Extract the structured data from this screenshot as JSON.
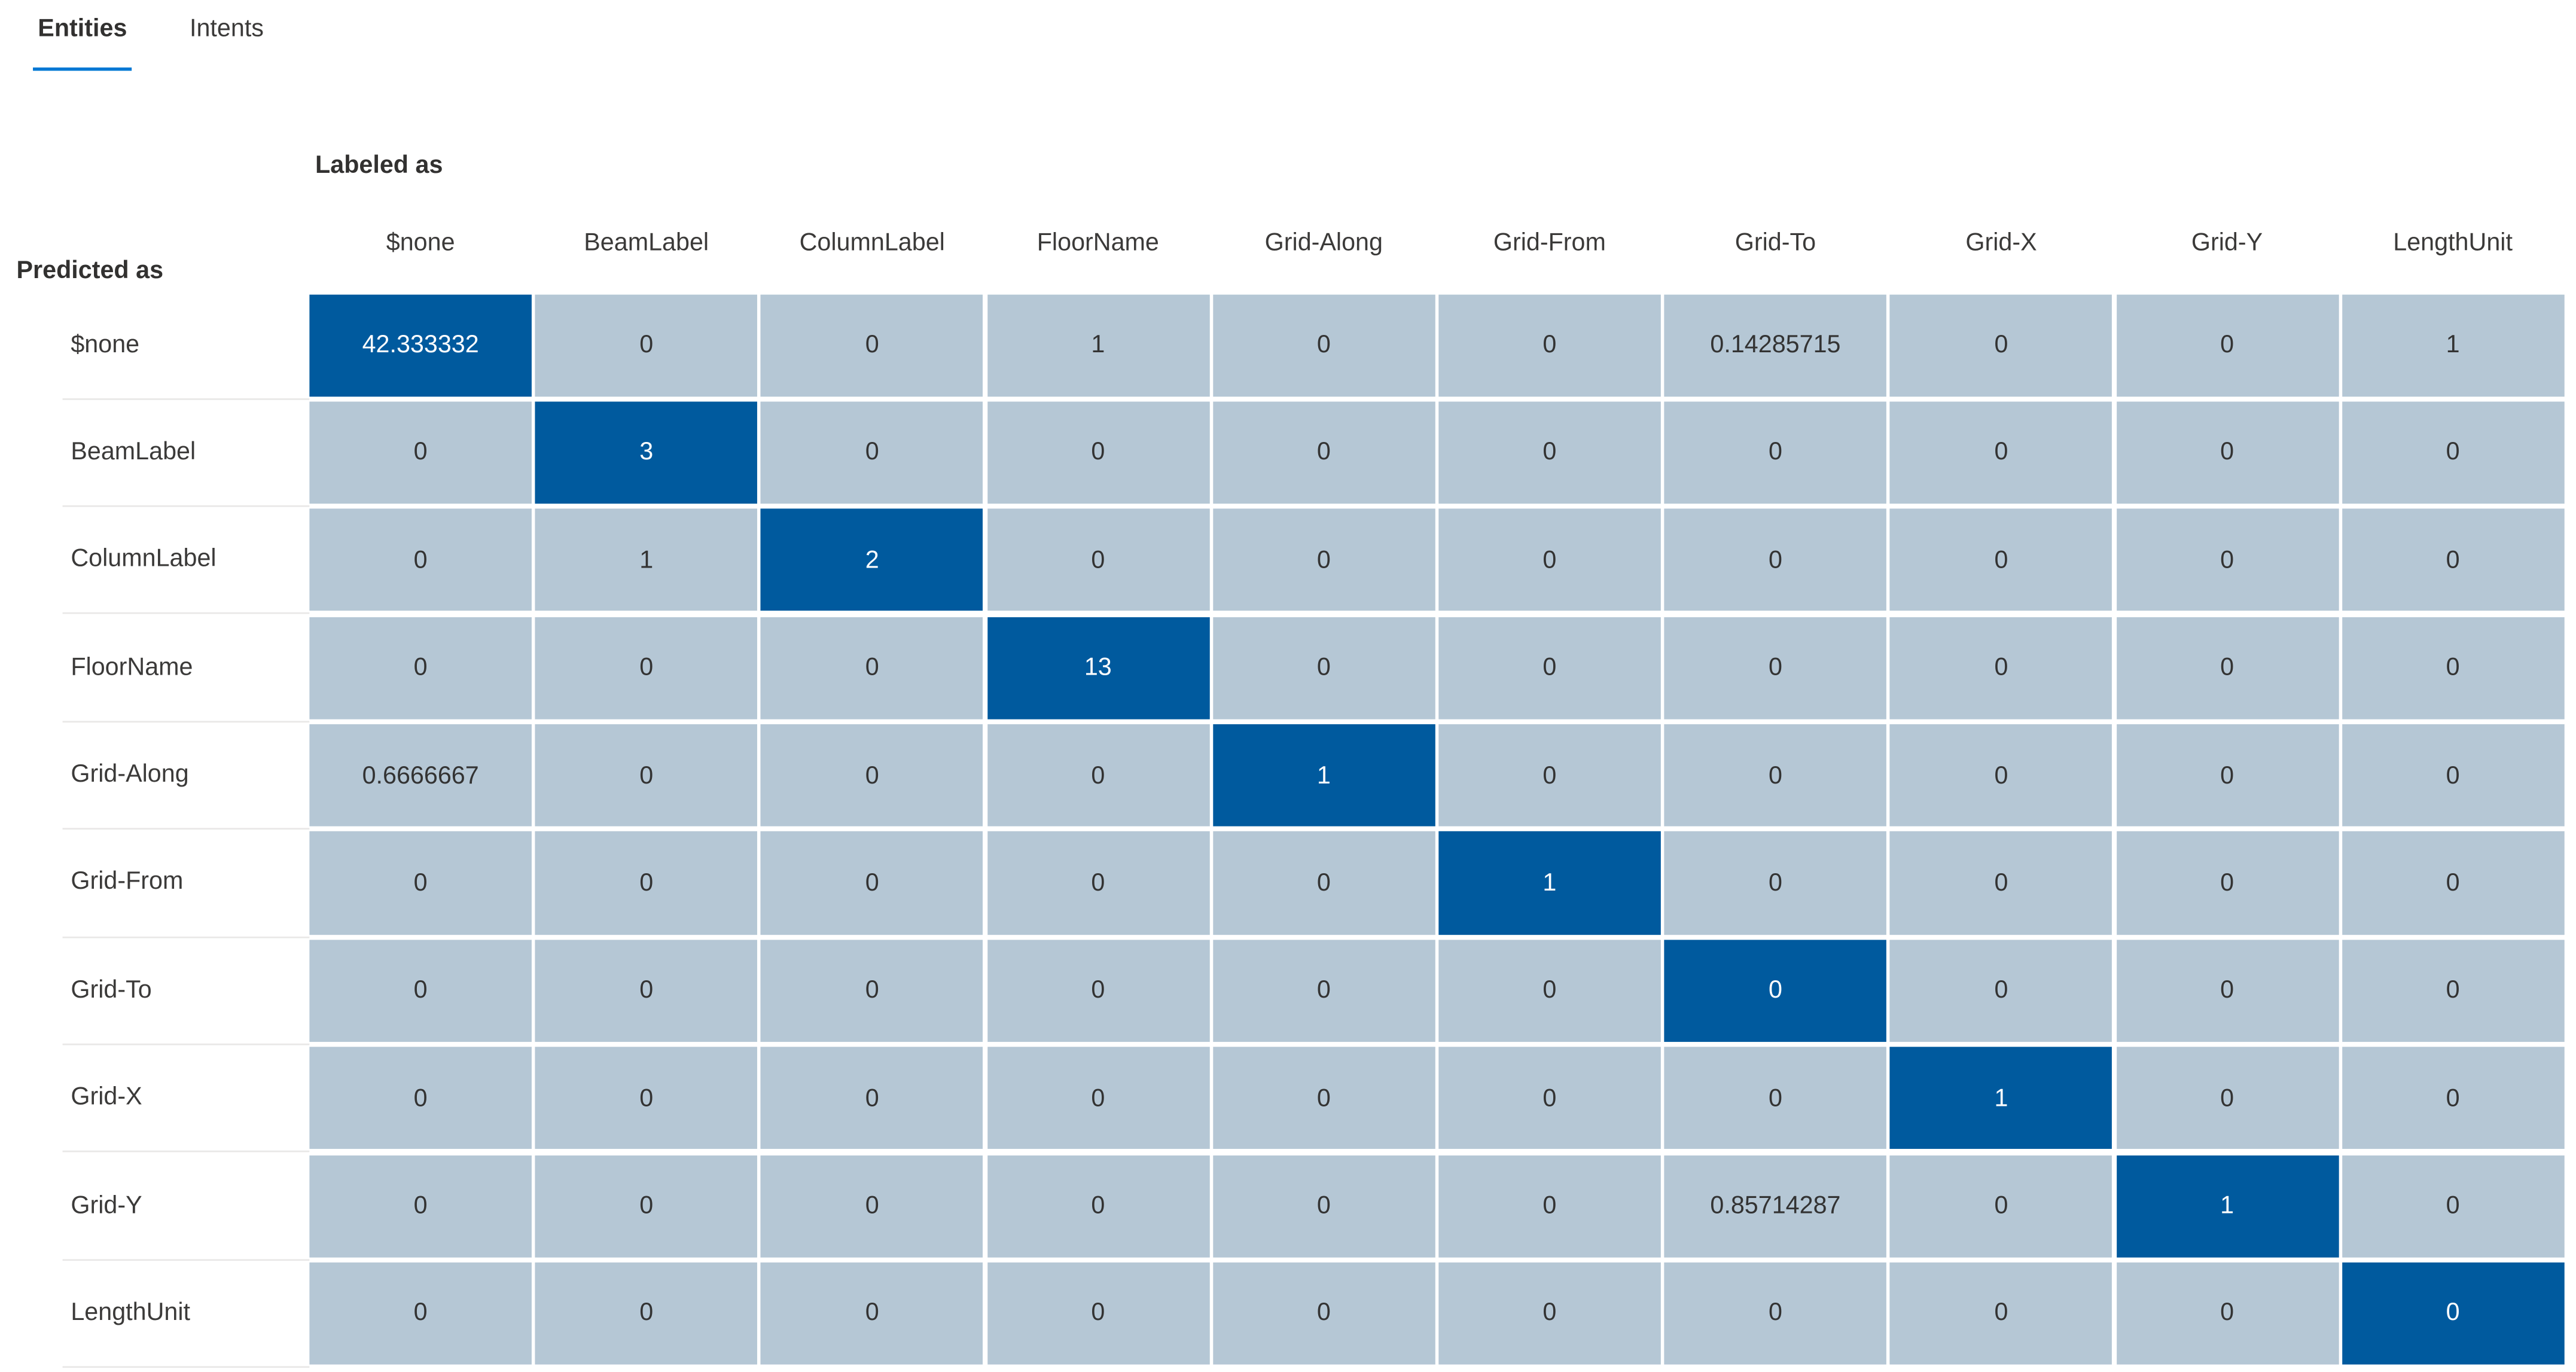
{
  "tabs": [
    {
      "label": "Entities",
      "active": true
    },
    {
      "label": "Intents",
      "active": false
    }
  ],
  "axes": {
    "column_axis_label": "Labeled as",
    "row_axis_label": "Predicted as"
  },
  "colors": {
    "tab_underline": "#0078d4",
    "cell_background": "#b5c7d5",
    "cell_text": "#333333",
    "diagonal_cell_background": "#005a9e",
    "diagonal_cell_text": "#ffffff"
  },
  "chart_data": {
    "type": "heatmap",
    "title": "",
    "xlabel": "Labeled as",
    "ylabel": "Predicted as",
    "x_labels": [
      "$none",
      "BeamLabel",
      "ColumnLabel",
      "FloorName",
      "Grid-Along",
      "Grid-From",
      "Grid-To",
      "Grid-X",
      "Grid-Y",
      "LengthUnit"
    ],
    "y_labels": [
      "$none",
      "BeamLabel",
      "ColumnLabel",
      "FloorName",
      "Grid-Along",
      "Grid-From",
      "Grid-To",
      "Grid-X",
      "Grid-Y",
      "LengthUnit"
    ],
    "matrix": [
      [
        "42.333332",
        "0",
        "0",
        "1",
        "0",
        "0",
        "0.14285715",
        "0",
        "0",
        "1"
      ],
      [
        "0",
        "3",
        "0",
        "0",
        "0",
        "0",
        "0",
        "0",
        "0",
        "0"
      ],
      [
        "0",
        "1",
        "2",
        "0",
        "0",
        "0",
        "0",
        "0",
        "0",
        "0"
      ],
      [
        "0",
        "0",
        "0",
        "13",
        "0",
        "0",
        "0",
        "0",
        "0",
        "0"
      ],
      [
        "0.6666667",
        "0",
        "0",
        "0",
        "1",
        "0",
        "0",
        "0",
        "0",
        "0"
      ],
      [
        "0",
        "0",
        "0",
        "0",
        "0",
        "1",
        "0",
        "0",
        "0",
        "0"
      ],
      [
        "0",
        "0",
        "0",
        "0",
        "0",
        "0",
        "0",
        "0",
        "0",
        "0"
      ],
      [
        "0",
        "0",
        "0",
        "0",
        "0",
        "0",
        "0",
        "1",
        "0",
        "0"
      ],
      [
        "0",
        "0",
        "0",
        "0",
        "0",
        "0",
        "0.85714287",
        "0",
        "1",
        "0"
      ],
      [
        "0",
        "0",
        "0",
        "0",
        "0",
        "0",
        "0",
        "0",
        "0",
        "0"
      ]
    ],
    "highlight": "diagonal",
    "legend": "none",
    "grid": "cell-gaps"
  }
}
